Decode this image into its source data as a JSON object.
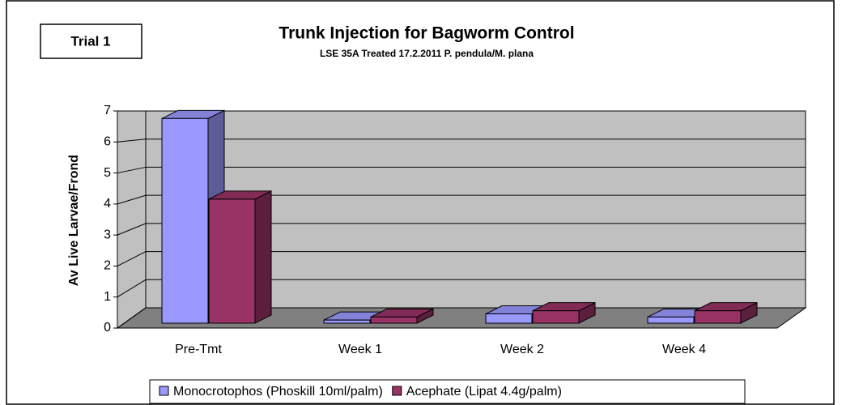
{
  "chart_data": {
    "type": "bar3d",
    "title": "Trunk Injection for Bagworm Control",
    "subtitle": "LSE 35A Treated 17.2.2011 P. pendula/M. plana",
    "annotation": "Trial 1",
    "y_label": "Av Live Larvae/Frond",
    "categories": [
      "Pre-Tmt",
      "Week 1",
      "Week 2",
      "Week 4"
    ],
    "series": [
      {
        "name": "Monocrotophos (Phoskill 10ml/palm)",
        "color": "#9999ff",
        "values": [
          6.6,
          0.1,
          0.3,
          0.2
        ]
      },
      {
        "name": "Acephate (Lipat 4.4g/palm)",
        "color": "#993366",
        "values": [
          4.0,
          0.2,
          0.4,
          0.4
        ]
      }
    ],
    "ylim": [
      0,
      7
    ],
    "yticks": [
      0,
      1,
      2,
      3,
      4,
      5,
      6,
      7
    ],
    "grid": true,
    "legend": "bottom"
  }
}
